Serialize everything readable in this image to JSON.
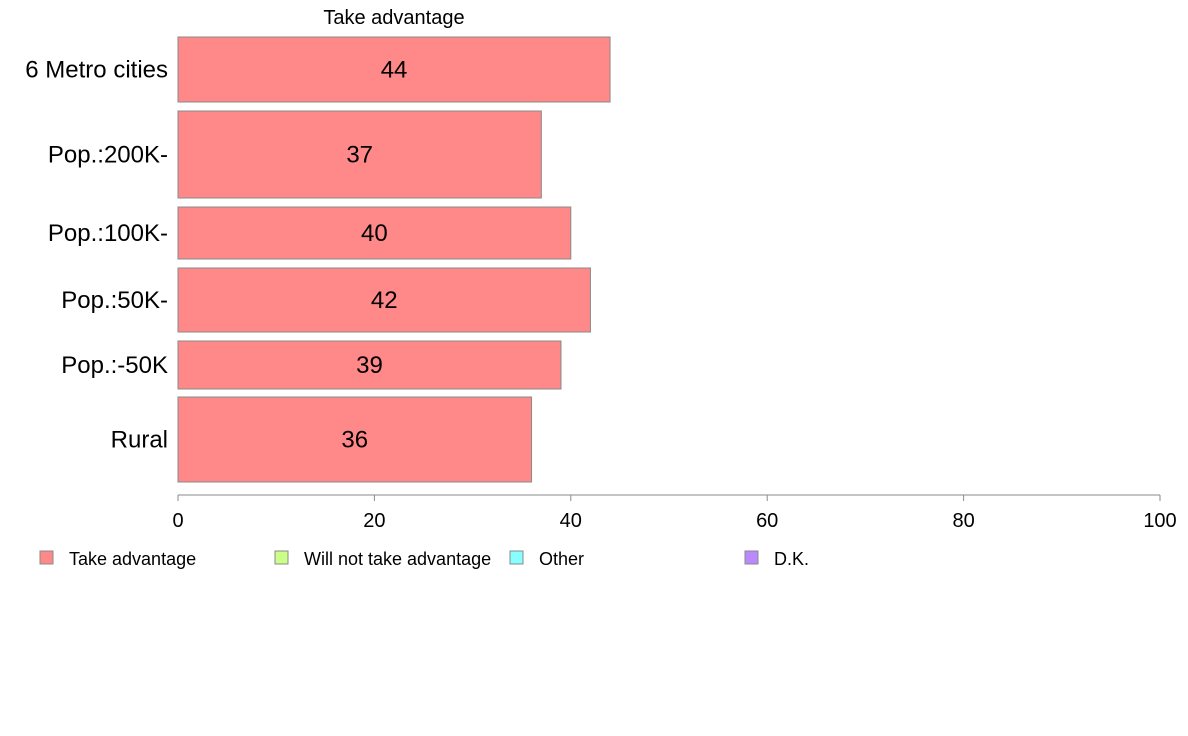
{
  "chart_data": {
    "type": "bar",
    "orientation": "horizontal",
    "stacked": true,
    "column_header": "Take advantage",
    "categories": [
      "6 Metro cities",
      "Pop.:200K-",
      "Pop.:100K-",
      "Pop.:50K-",
      "Pop.:-50K",
      "Rural"
    ],
    "series": [
      {
        "name": "Take advantage",
        "color": "#ff8888",
        "values": [
          44,
          37,
          40,
          42,
          39,
          36
        ]
      },
      {
        "name": "Will not take advantage",
        "color": "#ccff88",
        "values": [
          null,
          null,
          null,
          null,
          null,
          null
        ]
      },
      {
        "name": "Other",
        "color": "#88ffff",
        "values": [
          null,
          null,
          null,
          null,
          null,
          null
        ]
      },
      {
        "name": "D.K.",
        "color": "#bb88ff",
        "values": [
          null,
          null,
          null,
          null,
          null,
          null
        ]
      }
    ],
    "xlim": [
      0,
      100
    ],
    "xticks": [
      0,
      20,
      40,
      60,
      80,
      100
    ],
    "grid": false,
    "legend_position": "bottom"
  }
}
